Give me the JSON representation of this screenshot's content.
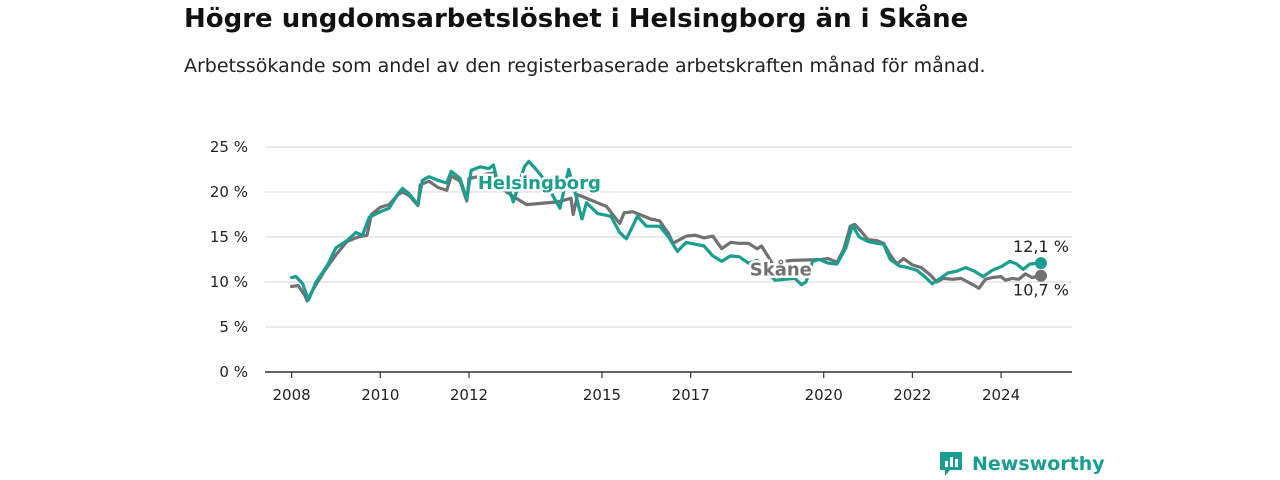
{
  "header": {
    "title": "Högre ungdomsarbetslöshet i Helsingborg än i Skåne",
    "subtitle": "Arbetssökande som andel av den registerbaserade arbetskraften månad för månad."
  },
  "brand": {
    "name": "Newsworthy",
    "icon": "newsworthy-logo-icon",
    "color": "#1a9e8f"
  },
  "chart_data": {
    "type": "line",
    "title": "Högre ungdomsarbetslöshet i Helsingborg än i Skåne",
    "subtitle": "Arbetssökande som andel av den registerbaserade arbetskraften månad för månad.",
    "xlabel": "",
    "ylabel": "",
    "x_ticks": [
      2008,
      2010,
      2012,
      2015,
      2017,
      2020,
      2022,
      2024
    ],
    "x_range": [
      2007.4,
      2025.6
    ],
    "y_ticks": [
      "0 %",
      "5 %",
      "10 %",
      "15 %",
      "20 %",
      "25 %"
    ],
    "ylim": [
      0,
      25
    ],
    "grid": true,
    "series": [
      {
        "name": "Skåne",
        "color": "#717073",
        "end_label": "10,7 %",
        "points": [
          [
            2008.0,
            9.5
          ],
          [
            2008.15,
            9.6
          ],
          [
            2008.3,
            8.5
          ],
          [
            2008.35,
            7.9
          ],
          [
            2008.5,
            9.3
          ],
          [
            2008.75,
            11.3
          ],
          [
            2009.0,
            13.0
          ],
          [
            2009.25,
            14.5
          ],
          [
            2009.5,
            15.0
          ],
          [
            2009.7,
            15.2
          ],
          [
            2009.8,
            17.5
          ],
          [
            2010.0,
            18.3
          ],
          [
            2010.2,
            18.6
          ],
          [
            2010.4,
            19.7
          ],
          [
            2010.5,
            20.0
          ],
          [
            2010.65,
            19.6
          ],
          [
            2010.85,
            18.5
          ],
          [
            2010.9,
            20.8
          ],
          [
            2011.1,
            21.2
          ],
          [
            2011.3,
            20.5
          ],
          [
            2011.5,
            20.2
          ],
          [
            2011.6,
            21.8
          ],
          [
            2011.8,
            21.2
          ],
          [
            2011.95,
            19.0
          ],
          [
            2012.0,
            21.5
          ],
          [
            2012.2,
            21.7
          ],
          [
            2012.4,
            22.0
          ],
          [
            2012.55,
            22.1
          ],
          [
            2012.6,
            21.0
          ],
          [
            2012.85,
            20.0
          ],
          [
            2013.0,
            19.5
          ],
          [
            2013.3,
            18.6
          ],
          [
            2014.0,
            18.9
          ],
          [
            2014.3,
            19.3
          ],
          [
            2014.35,
            17.5
          ],
          [
            2014.45,
            19.7
          ],
          [
            2014.6,
            19.4
          ],
          [
            2014.9,
            18.8
          ],
          [
            2015.1,
            18.4
          ],
          [
            2015.4,
            16.5
          ],
          [
            2015.5,
            17.7
          ],
          [
            2015.7,
            17.8
          ],
          [
            2015.9,
            17.4
          ],
          [
            2016.1,
            17.0
          ],
          [
            2016.3,
            16.8
          ],
          [
            2016.5,
            15.4
          ],
          [
            2016.6,
            14.3
          ],
          [
            2016.9,
            15.1
          ],
          [
            2017.1,
            15.2
          ],
          [
            2017.3,
            14.9
          ],
          [
            2017.5,
            15.1
          ],
          [
            2017.7,
            13.7
          ],
          [
            2017.9,
            14.4
          ],
          [
            2018.1,
            14.3
          ],
          [
            2018.3,
            14.3
          ],
          [
            2018.5,
            13.7
          ],
          [
            2018.6,
            14.0
          ],
          [
            2018.8,
            12.4
          ],
          [
            2018.9,
            11.5
          ],
          [
            2019.1,
            12.3
          ],
          [
            2019.3,
            12.4
          ],
          [
            2019.95,
            12.5
          ],
          [
            2020.1,
            12.6
          ],
          [
            2020.3,
            12.2
          ],
          [
            2020.45,
            13.6
          ],
          [
            2020.6,
            16.2
          ],
          [
            2020.7,
            16.4
          ],
          [
            2020.85,
            15.6
          ],
          [
            2021.0,
            14.7
          ],
          [
            2021.2,
            14.6
          ],
          [
            2021.35,
            14.3
          ],
          [
            2021.5,
            13.0
          ],
          [
            2021.65,
            12.0
          ],
          [
            2021.8,
            12.6
          ],
          [
            2022.0,
            11.9
          ],
          [
            2022.2,
            11.6
          ],
          [
            2022.4,
            10.8
          ],
          [
            2022.55,
            10.0
          ],
          [
            2022.7,
            10.4
          ],
          [
            2022.9,
            10.3
          ],
          [
            2023.1,
            10.4
          ],
          [
            2023.25,
            10.0
          ],
          [
            2023.4,
            9.6
          ],
          [
            2023.5,
            9.3
          ],
          [
            2023.65,
            10.3
          ],
          [
            2023.8,
            10.5
          ],
          [
            2024.0,
            10.6
          ],
          [
            2024.1,
            10.2
          ],
          [
            2024.25,
            10.4
          ],
          [
            2024.4,
            10.3
          ],
          [
            2024.55,
            10.9
          ],
          [
            2024.7,
            10.5
          ],
          [
            2024.9,
            10.7
          ]
        ]
      },
      {
        "name": "Helsingborg",
        "color": "#1a9e8f",
        "end_label": "12,1 %",
        "points": [
          [
            2008.0,
            10.5
          ],
          [
            2008.1,
            10.6
          ],
          [
            2008.25,
            9.8
          ],
          [
            2008.38,
            8.0
          ],
          [
            2008.55,
            10.0
          ],
          [
            2008.8,
            11.8
          ],
          [
            2009.0,
            13.8
          ],
          [
            2009.25,
            14.6
          ],
          [
            2009.45,
            15.5
          ],
          [
            2009.6,
            15.2
          ],
          [
            2009.75,
            17.2
          ],
          [
            2010.0,
            17.8
          ],
          [
            2010.2,
            18.2
          ],
          [
            2010.4,
            19.8
          ],
          [
            2010.5,
            20.4
          ],
          [
            2010.65,
            19.8
          ],
          [
            2010.85,
            18.6
          ],
          [
            2010.95,
            21.3
          ],
          [
            2011.1,
            21.7
          ],
          [
            2011.3,
            21.3
          ],
          [
            2011.5,
            21.0
          ],
          [
            2011.6,
            22.3
          ],
          [
            2011.8,
            21.5
          ],
          [
            2011.95,
            19.2
          ],
          [
            2012.05,
            22.4
          ],
          [
            2012.25,
            22.8
          ],
          [
            2012.45,
            22.6
          ],
          [
            2012.55,
            23.0
          ],
          [
            2012.62,
            21.6
          ],
          [
            2012.85,
            21.1
          ],
          [
            2013.0,
            18.9
          ],
          [
            2013.25,
            22.8
          ],
          [
            2013.35,
            23.4
          ],
          [
            2013.5,
            22.6
          ],
          [
            2013.65,
            21.7
          ],
          [
            2014.05,
            18.2
          ],
          [
            2014.25,
            22.5
          ],
          [
            2014.4,
            19.8
          ],
          [
            2014.55,
            17.0
          ],
          [
            2014.65,
            18.8
          ],
          [
            2014.9,
            17.6
          ],
          [
            2015.2,
            17.3
          ],
          [
            2015.4,
            15.5
          ],
          [
            2015.55,
            14.8
          ],
          [
            2015.8,
            17.3
          ],
          [
            2016.0,
            16.2
          ],
          [
            2016.3,
            16.2
          ],
          [
            2016.5,
            15.0
          ],
          [
            2016.7,
            13.4
          ],
          [
            2016.9,
            14.4
          ],
          [
            2017.1,
            14.2
          ],
          [
            2017.3,
            14.0
          ],
          [
            2017.5,
            12.9
          ],
          [
            2017.7,
            12.3
          ],
          [
            2017.9,
            12.9
          ],
          [
            2018.1,
            12.8
          ],
          [
            2018.3,
            12.1
          ],
          [
            2018.5,
            12.4
          ],
          [
            2018.65,
            11.8
          ],
          [
            2018.75,
            11.0
          ],
          [
            2018.9,
            10.2
          ],
          [
            2019.35,
            10.4
          ],
          [
            2019.5,
            9.7
          ],
          [
            2019.6,
            10.0
          ],
          [
            2019.75,
            12.3
          ],
          [
            2019.9,
            12.5
          ],
          [
            2020.1,
            12.1
          ],
          [
            2020.3,
            12.0
          ],
          [
            2020.5,
            13.8
          ],
          [
            2020.65,
            16.3
          ],
          [
            2020.8,
            15.0
          ],
          [
            2021.0,
            14.5
          ],
          [
            2021.2,
            14.3
          ],
          [
            2021.35,
            14.2
          ],
          [
            2021.5,
            12.5
          ],
          [
            2021.7,
            11.8
          ],
          [
            2021.9,
            11.6
          ],
          [
            2022.1,
            11.3
          ],
          [
            2022.3,
            10.5
          ],
          [
            2022.45,
            9.8
          ],
          [
            2022.6,
            10.3
          ],
          [
            2022.8,
            11.0
          ],
          [
            2023.0,
            11.2
          ],
          [
            2023.2,
            11.6
          ],
          [
            2023.4,
            11.2
          ],
          [
            2023.6,
            10.6
          ],
          [
            2023.8,
            11.3
          ],
          [
            2024.0,
            11.7
          ],
          [
            2024.2,
            12.3
          ],
          [
            2024.35,
            12.0
          ],
          [
            2024.5,
            11.4
          ],
          [
            2024.65,
            12.0
          ],
          [
            2024.9,
            12.1
          ]
        ]
      }
    ],
    "annotations": [
      {
        "text": "Helsingborg",
        "series": "Helsingborg",
        "x": 2013.8,
        "y": 21.1
      },
      {
        "text": "Skåne",
        "series": "Skåne",
        "x": 2019.1,
        "y": 11.6
      },
      {
        "text": "12,1 %",
        "series": "Helsingborg",
        "x": 2024.9,
        "y": 12.1
      },
      {
        "text": "10,7 %",
        "series": "Skåne",
        "x": 2024.9,
        "y": 10.7
      }
    ]
  }
}
